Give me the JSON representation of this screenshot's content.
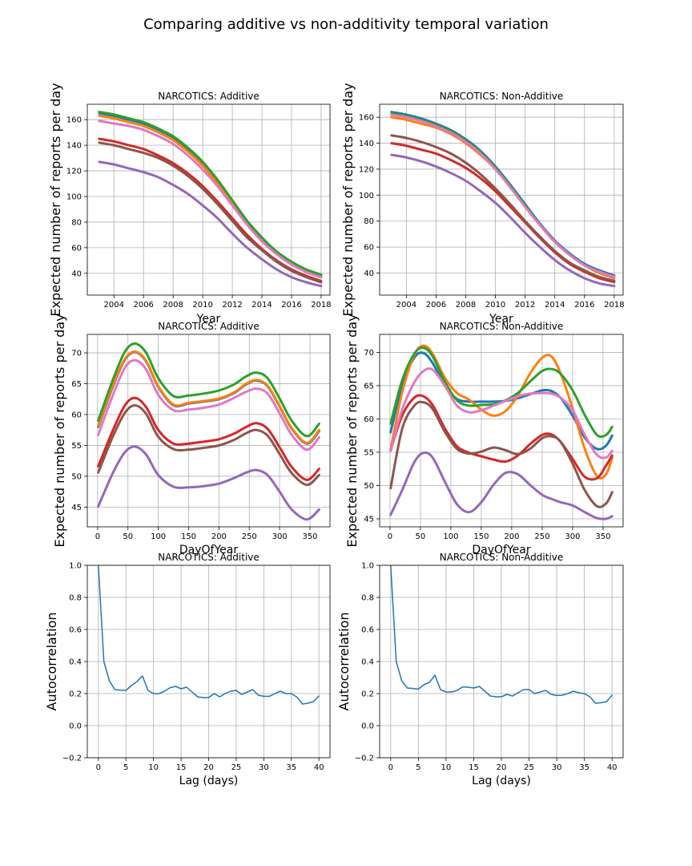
{
  "figure": {
    "title": "Comparing additive vs non-additivity temporal variation"
  },
  "colors": {
    "blue": "#1f77b4",
    "orange": "#ff7f0e",
    "green": "#2ca02c",
    "red": "#d62728",
    "purple": "#9467bd",
    "brown": "#8c564b",
    "pink": "#e377c2"
  },
  "chart_data": [
    {
      "id": "p0",
      "type": "line",
      "title": "NARCOTICS: Additive",
      "xlabel": "Year",
      "ylabel": "Expected number of reports per day",
      "xlim": [
        2002.2,
        2018.6
      ],
      "ylim": [
        23,
        172
      ],
      "xticks": [
        2004,
        2006,
        2008,
        2010,
        2012,
        2014,
        2016,
        2018
      ],
      "yticks": [
        40,
        60,
        80,
        100,
        120,
        140,
        160
      ],
      "grid": true,
      "x": [
        2003,
        2004,
        2005,
        2006,
        2007,
        2008,
        2009,
        2010,
        2011,
        2012,
        2013,
        2014,
        2015,
        2016,
        2017,
        2018
      ],
      "series": [
        {
          "color": "#1f77b4",
          "values": [
            165,
            163,
            160,
            157,
            152,
            146,
            137,
            126,
            112,
            96,
            80,
            67,
            56,
            48,
            42,
            38
          ]
        },
        {
          "color": "#ff7f0e",
          "values": [
            163,
            161,
            158,
            155,
            150,
            144,
            135,
            124,
            110,
            94,
            79,
            66,
            55,
            47,
            41,
            37
          ]
        },
        {
          "color": "#2ca02c",
          "values": [
            166,
            164,
            161,
            158,
            153,
            147,
            138,
            127,
            113,
            97,
            81,
            68,
            57,
            49,
            43,
            39
          ]
        },
        {
          "color": "#d62728",
          "values": [
            145,
            143,
            140,
            137,
            132,
            126,
            118,
            108,
            96,
            83,
            70,
            59,
            50,
            43,
            38,
            34
          ]
        },
        {
          "color": "#9467bd",
          "values": [
            127,
            125,
            122,
            119,
            115,
            109,
            102,
            93,
            83,
            71,
            60,
            51,
            43,
            37,
            33,
            30
          ]
        },
        {
          "color": "#8c564b",
          "values": [
            142,
            140,
            137,
            134,
            130,
            124,
            116,
            106,
            94,
            81,
            68,
            58,
            49,
            42,
            37,
            33
          ]
        },
        {
          "color": "#e377c2",
          "values": [
            159,
            157,
            155,
            152,
            147,
            141,
            132,
            121,
            108,
            93,
            78,
            65,
            55,
            47,
            41,
            37
          ]
        }
      ]
    },
    {
      "id": "p1",
      "type": "line",
      "title": "NARCOTICS: Non-Additive",
      "xlabel": "Year",
      "ylabel": "Expected number of reports per day",
      "xlim": [
        2002.2,
        2018.6
      ],
      "ylim": [
        23,
        170
      ],
      "xticks": [
        2004,
        2006,
        2008,
        2010,
        2012,
        2014,
        2016,
        2018
      ],
      "yticks": [
        40,
        60,
        80,
        100,
        120,
        140,
        160
      ],
      "grid": true,
      "x": [
        2003,
        2004,
        2005,
        2006,
        2007,
        2008,
        2009,
        2010,
        2011,
        2012,
        2013,
        2014,
        2015,
        2016,
        2017,
        2018
      ],
      "series": [
        {
          "color": "#1f77b4",
          "values": [
            164,
            162,
            159,
            155,
            150,
            143,
            134,
            122,
            108,
            93,
            78,
            65,
            55,
            47,
            42,
            38
          ]
        },
        {
          "color": "#ff7f0e",
          "values": [
            160,
            158,
            155,
            152,
            147,
            140,
            131,
            120,
            106,
            91,
            77,
            64,
            54,
            46,
            40,
            36
          ]
        },
        {
          "color": "#2ca02c",
          "values": [
            163,
            161,
            158,
            154,
            149,
            142,
            133,
            121,
            107,
            92,
            77,
            64,
            54,
            46,
            41,
            37
          ]
        },
        {
          "color": "#d62728",
          "values": [
            140,
            138,
            135,
            132,
            127,
            121,
            113,
            103,
            91,
            79,
            67,
            56,
            47,
            41,
            36,
            33
          ]
        },
        {
          "color": "#9467bd",
          "values": [
            131,
            129,
            126,
            122,
            117,
            111,
            103,
            94,
            83,
            71,
            60,
            50,
            42,
            36,
            32,
            30
          ]
        },
        {
          "color": "#8c564b",
          "values": [
            146,
            144,
            141,
            137,
            132,
            125,
            116,
            105,
            93,
            80,
            68,
            57,
            48,
            42,
            37,
            34
          ]
        },
        {
          "color": "#e377c2",
          "values": [
            162,
            160,
            157,
            153,
            148,
            141,
            132,
            120,
            106,
            91,
            77,
            64,
            54,
            46,
            41,
            37
          ]
        }
      ]
    },
    {
      "id": "p2",
      "type": "line",
      "title": "NARCOTICS: Additive",
      "xlabel": "DayOfYear",
      "ylabel": "Expected number of reports per day",
      "xlim": [
        -17,
        383
      ],
      "ylim": [
        41.8,
        73
      ],
      "xticks": [
        0,
        50,
        100,
        150,
        200,
        250,
        300,
        350
      ],
      "yticks": [
        45,
        50,
        55,
        60,
        65,
        70
      ],
      "grid": true,
      "x": [
        1,
        25,
        45,
        62,
        80,
        100,
        125,
        150,
        175,
        200,
        225,
        245,
        262,
        280,
        300,
        320,
        345,
        365
      ],
      "series": [
        {
          "color": "#1f77b4",
          "values": [
            58.0,
            64.5,
            68.9,
            70.1,
            68.6,
            64.5,
            61.5,
            61.8,
            62.1,
            62.5,
            63.5,
            64.9,
            65.5,
            64.6,
            61.3,
            57.7,
            55.3,
            57.3
          ]
        },
        {
          "color": "#ff7f0e",
          "values": [
            58.2,
            64.7,
            69.0,
            70.2,
            68.7,
            64.6,
            61.6,
            61.9,
            62.2,
            62.6,
            63.6,
            65.0,
            65.6,
            64.7,
            61.4,
            57.8,
            55.4,
            57.5
          ]
        },
        {
          "color": "#2ca02c",
          "values": [
            59.0,
            65.6,
            70.2,
            71.5,
            70.0,
            65.9,
            63.0,
            63.1,
            63.4,
            63.9,
            64.9,
            66.2,
            66.8,
            65.9,
            62.6,
            59.0,
            56.5,
            58.5
          ]
        },
        {
          "color": "#d62728",
          "values": [
            51.6,
            57.4,
            61.5,
            62.7,
            61.2,
            57.5,
            55.3,
            55.3,
            55.6,
            56.0,
            56.9,
            58.0,
            58.6,
            57.7,
            54.7,
            51.5,
            49.4,
            51.2
          ]
        },
        {
          "color": "#9467bd",
          "values": [
            45.1,
            50.5,
            53.9,
            54.8,
            53.5,
            50.2,
            48.3,
            48.2,
            48.4,
            48.8,
            49.7,
            50.6,
            51.0,
            50.2,
            47.5,
            44.6,
            43.0,
            44.6
          ]
        },
        {
          "color": "#8c564b",
          "values": [
            50.6,
            56.4,
            60.3,
            61.5,
            60.1,
            56.4,
            54.4,
            54.3,
            54.6,
            55.0,
            55.9,
            57.0,
            57.5,
            56.6,
            53.6,
            50.5,
            48.6,
            50.2
          ]
        },
        {
          "color": "#e377c2",
          "values": [
            56.7,
            63.1,
            67.6,
            68.8,
            67.3,
            63.2,
            60.7,
            60.8,
            61.1,
            61.6,
            62.7,
            63.7,
            64.2,
            63.4,
            60.2,
            56.7,
            54.3,
            56.3
          ]
        }
      ]
    },
    {
      "id": "p3",
      "type": "line",
      "title": "NARCOTICS: Non-Additive",
      "xlabel": "DayOfYear",
      "ylabel": "Expected number of reports per day",
      "xlim": [
        -17,
        383
      ],
      "ylim": [
        43.8,
        72.7
      ],
      "xticks": [
        0,
        50,
        100,
        150,
        200,
        250,
        300,
        350
      ],
      "yticks": [
        45,
        50,
        55,
        60,
        65,
        70
      ],
      "grid": true,
      "x": [
        1,
        20,
        40,
        55,
        70,
        90,
        110,
        130,
        150,
        170,
        190,
        210,
        230,
        250,
        265,
        280,
        300,
        320,
        340,
        355,
        365
      ],
      "series": [
        {
          "color": "#1f77b4",
          "values": [
            58.0,
            65.0,
            69.2,
            69.9,
            68.4,
            65.0,
            63.0,
            62.6,
            62.6,
            62.6,
            62.7,
            63.1,
            63.7,
            64.3,
            64.2,
            63.2,
            60.5,
            57.2,
            55.5,
            56.0,
            57.5
          ]
        },
        {
          "color": "#ff7f0e",
          "values": [
            55.4,
            64.0,
            69.6,
            71.0,
            69.8,
            66.2,
            63.9,
            62.9,
            61.4,
            60.5,
            61.2,
            63.5,
            66.8,
            69.2,
            69.4,
            66.9,
            61.6,
            55.5,
            51.4,
            51.7,
            54.2
          ]
        },
        {
          "color": "#2ca02c",
          "values": [
            59.3,
            65.8,
            69.8,
            70.7,
            69.4,
            65.6,
            62.8,
            62.0,
            62.1,
            62.2,
            62.8,
            63.9,
            65.6,
            67.2,
            67.5,
            66.8,
            64.3,
            60.6,
            57.6,
            57.6,
            58.8
          ]
        },
        {
          "color": "#d62728",
          "values": [
            55.3,
            60.5,
            63.2,
            63.4,
            62.1,
            58.6,
            55.9,
            54.9,
            54.4,
            53.9,
            53.6,
            54.5,
            56.2,
            57.6,
            57.7,
            56.6,
            54.0,
            51.3,
            51.1,
            53.0,
            54.5
          ]
        },
        {
          "color": "#9467bd",
          "values": [
            45.6,
            49.3,
            53.5,
            54.9,
            54.2,
            50.6,
            47.2,
            46.0,
            47.5,
            50.1,
            51.9,
            51.7,
            50.1,
            48.6,
            48.0,
            47.5,
            47.0,
            46.0,
            45.1,
            45.0,
            45.4
          ]
        },
        {
          "color": "#8c564b",
          "values": [
            49.6,
            58.5,
            62.0,
            62.5,
            61.5,
            58.1,
            55.5,
            54.8,
            55.1,
            55.7,
            55.3,
            54.7,
            55.5,
            57.1,
            57.4,
            56.6,
            53.3,
            49.3,
            46.9,
            47.3,
            49.0
          ]
        },
        {
          "color": "#e377c2",
          "values": [
            55.2,
            61.4,
            65.5,
            67.2,
            67.4,
            65.0,
            62.0,
            61.0,
            61.3,
            62.0,
            62.7,
            63.4,
            63.8,
            63.9,
            63.8,
            63.2,
            61.3,
            57.6,
            54.6,
            54.2,
            55.2
          ]
        }
      ]
    },
    {
      "id": "p4",
      "type": "line",
      "title": "NARCOTICS: Additive",
      "xlabel": "Lag (days)",
      "ylabel": "Autocorrelation",
      "xlim": [
        -2,
        42
      ],
      "ylim": [
        -0.2,
        1.0
      ],
      "xticks": [
        0,
        5,
        10,
        15,
        20,
        25,
        30,
        35,
        40
      ],
      "yticks": [
        -0.2,
        0.0,
        0.2,
        0.4,
        0.6,
        0.8,
        1.0
      ],
      "grid": true,
      "x": [
        0,
        1,
        2,
        3,
        4,
        5,
        6,
        7,
        8,
        9,
        10,
        11,
        12,
        13,
        14,
        15,
        16,
        17,
        18,
        19,
        20,
        21,
        22,
        23,
        24,
        25,
        26,
        27,
        28,
        29,
        30,
        31,
        32,
        33,
        34,
        35,
        36,
        37,
        38,
        39,
        40
      ],
      "series": [
        {
          "color": "#1f77b4",
          "values": [
            1.0,
            0.4,
            0.28,
            0.225,
            0.222,
            0.22,
            0.25,
            0.275,
            0.31,
            0.22,
            0.2,
            0.2,
            0.215,
            0.237,
            0.245,
            0.23,
            0.24,
            0.21,
            0.18,
            0.175,
            0.175,
            0.2,
            0.18,
            0.2,
            0.215,
            0.22,
            0.195,
            0.21,
            0.225,
            0.19,
            0.183,
            0.183,
            0.2,
            0.215,
            0.2,
            0.2,
            0.178,
            0.135,
            0.14,
            0.15,
            0.185
          ]
        }
      ]
    },
    {
      "id": "p5",
      "type": "line",
      "title": "NARCOTICS: Non-Additive",
      "xlabel": "Lag (days)",
      "ylabel": "Autocorrelation",
      "xlim": [
        -2,
        42
      ],
      "ylim": [
        -0.2,
        1.0
      ],
      "xticks": [
        0,
        5,
        10,
        15,
        20,
        25,
        30,
        35,
        40
      ],
      "yticks": [
        -0.2,
        0.0,
        0.2,
        0.4,
        0.6,
        0.8,
        1.0
      ],
      "grid": true,
      "x": [
        0,
        1,
        2,
        3,
        4,
        5,
        6,
        7,
        8,
        9,
        10,
        11,
        12,
        13,
        14,
        15,
        16,
        17,
        18,
        19,
        20,
        21,
        22,
        23,
        24,
        25,
        26,
        27,
        28,
        29,
        30,
        31,
        32,
        33,
        34,
        35,
        36,
        37,
        38,
        39,
        40
      ],
      "series": [
        {
          "color": "#1f77b4",
          "values": [
            1.0,
            0.4,
            0.28,
            0.235,
            0.232,
            0.228,
            0.255,
            0.27,
            0.315,
            0.225,
            0.21,
            0.21,
            0.22,
            0.242,
            0.24,
            0.235,
            0.245,
            0.215,
            0.185,
            0.18,
            0.18,
            0.195,
            0.185,
            0.205,
            0.225,
            0.225,
            0.2,
            0.21,
            0.22,
            0.195,
            0.188,
            0.19,
            0.2,
            0.215,
            0.205,
            0.2,
            0.18,
            0.14,
            0.143,
            0.15,
            0.19
          ]
        }
      ]
    }
  ]
}
